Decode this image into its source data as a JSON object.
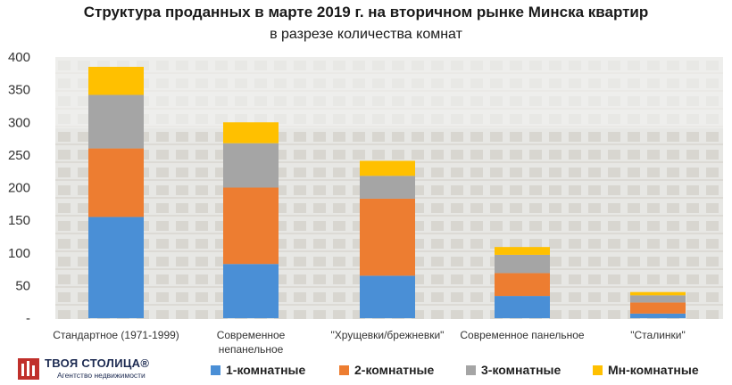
{
  "chart_data": {
    "type": "bar",
    "stacked": true,
    "title": "Структура проданных в марте 2019 г. на вторичном рынке Минска квартир",
    "subtitle": "в разрезе количества комнат",
    "categories": [
      "Стандартное (1971-1999)",
      "Современное непанельное",
      "\"Хрущевки/брежневки\"",
      "Современное панельное",
      "\"Сталинки\""
    ],
    "series": [
      {
        "name": "1-комнатные",
        "color": "#4a8fd6",
        "values": [
          155,
          83,
          65,
          34,
          7
        ]
      },
      {
        "name": "2-комнатные",
        "color": "#ed7d31",
        "values": [
          105,
          117,
          118,
          35,
          17
        ]
      },
      {
        "name": "3-комнатные",
        "color": "#a5a5a5",
        "values": [
          82,
          68,
          35,
          28,
          11
        ]
      },
      {
        "name": "Мн-комнатные",
        "color": "#ffc000",
        "values": [
          43,
          32,
          23,
          12,
          5
        ]
      }
    ],
    "ylim": [
      0,
      400
    ],
    "yticks": [
      "-",
      "50",
      "100",
      "150",
      "200",
      "250",
      "300",
      "350",
      "400"
    ],
    "grid": false,
    "legend_position": "bottom"
  },
  "logo": {
    "name": "ТВОЯ СТОЛИЦА®",
    "tagline": "Агентство недвижимости",
    "color": "#c0302b"
  }
}
